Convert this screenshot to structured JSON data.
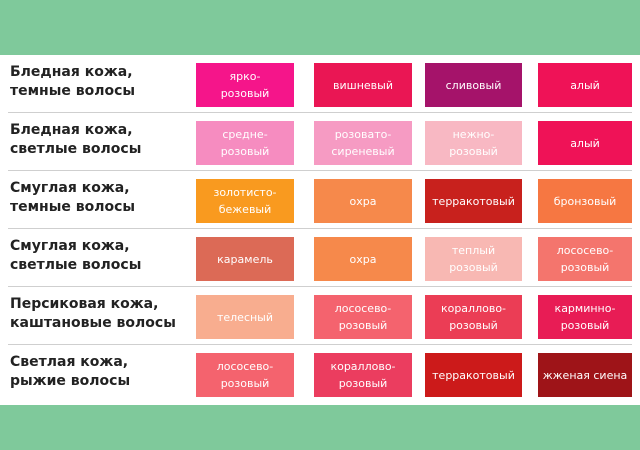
{
  "rows": [
    {
      "label": [
        "Бледная кожа,",
        "темные волосы"
      ],
      "swatches": [
        {
          "lines": [
            "ярко-",
            "розовый"
          ],
          "color": "#f5158a"
        },
        {
          "lines": [
            "вишневый"
          ],
          "color": "#ea1654"
        },
        {
          "lines": [
            "сливовый"
          ],
          "color": "#a5136a"
        },
        {
          "lines": [
            "алый"
          ],
          "color": "#ef1257"
        }
      ]
    },
    {
      "label": [
        "Бледная кожа,",
        "светлые волосы"
      ],
      "swatches": [
        {
          "lines": [
            "средне-",
            "розовый"
          ],
          "color": "#f68cc0"
        },
        {
          "lines": [
            "розовато-",
            "сиреневый"
          ],
          "color": "#f69bc3"
        },
        {
          "lines": [
            "нежно-",
            "розовый"
          ],
          "color": "#f8b8c3"
        },
        {
          "lines": [
            "алый"
          ],
          "color": "#ef1257"
        }
      ]
    },
    {
      "label": [
        "Смуглая кожа,",
        "темные волосы"
      ],
      "swatches": [
        {
          "lines": [
            "золотисто-",
            "бежевый"
          ],
          "color": "#f99a1f"
        },
        {
          "lines": [
            "охра"
          ],
          "color": "#f6894b"
        },
        {
          "lines": [
            "терракотовый"
          ],
          "color": "#c8211d"
        },
        {
          "lines": [
            "бронзовый"
          ],
          "color": "#f67742"
        }
      ]
    },
    {
      "label": [
        "Смуглая кожа,",
        "светлые волосы"
      ],
      "swatches": [
        {
          "lines": [
            "карамель"
          ],
          "color": "#dc6a56"
        },
        {
          "lines": [
            "охра"
          ],
          "color": "#f6894b"
        },
        {
          "lines": [
            "теплый",
            "розовый"
          ],
          "color": "#f8b8b3"
        },
        {
          "lines": [
            "лососево-",
            "розовый"
          ],
          "color": "#f4756d"
        }
      ]
    },
    {
      "label": [
        "Персиковая кожа,",
        "каштановые волосы"
      ],
      "swatches": [
        {
          "lines": [
            "телесный"
          ],
          "color": "#f8ad8f"
        },
        {
          "lines": [
            "лососево-",
            "розовый"
          ],
          "color": "#f4636e"
        },
        {
          "lines": [
            "кораллово-",
            "розовый"
          ],
          "color": "#eb3d55"
        },
        {
          "lines": [
            "карминно-",
            "розовый"
          ],
          "color": "#e81c55"
        }
      ]
    },
    {
      "label": [
        "Светлая кожа,",
        "рыжие волосы"
      ],
      "swatches": [
        {
          "lines": [
            "лососево-",
            "розовый"
          ],
          "color": "#f4636e"
        },
        {
          "lines": [
            "кораллово-",
            "розовый"
          ],
          "color": "#eb3d5f"
        },
        {
          "lines": [
            "терракотовый"
          ],
          "color": "#cc1a1a"
        },
        {
          "lines": [
            "жженая сиена"
          ],
          "color": "#9e1418"
        }
      ]
    }
  ]
}
